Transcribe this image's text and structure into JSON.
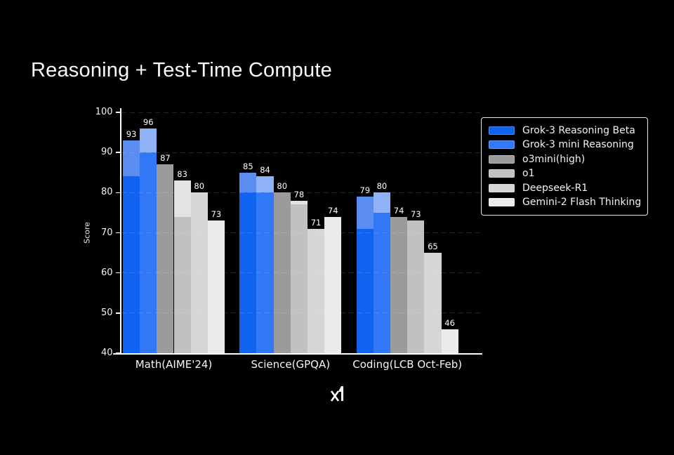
{
  "title": "Reasoning + Test-Time Compute",
  "footer": {
    "logo_name": "xai-logo"
  },
  "chart_data": {
    "type": "bar",
    "title": "Reasoning + Test-Time Compute",
    "xlabel": "",
    "ylabel": "Score",
    "ylim": [
      40,
      100
    ],
    "yticks": [
      40,
      50,
      60,
      70,
      80,
      90,
      100
    ],
    "grid": "horizontal dashed, drawn over bars, low opacity",
    "legend_position": "upper right",
    "background_color": "#000000",
    "axis_color": "#ffffff",
    "categories": [
      "Math(AIME'24)",
      "Science(GPQA)",
      "Coding(LCB Oct-Feb)"
    ],
    "series": [
      {
        "name": "Grok-3 Reasoning Beta",
        "color": "#1063ef",
        "cap_color": "#5b8cf0",
        "values": [
          93,
          85,
          79
        ],
        "solid_to": [
          84,
          80,
          71
        ],
        "note": "lighter cap segment from solid_to up to value"
      },
      {
        "name": "Grok-3 mini Reasoning",
        "color": "#3277f6",
        "cap_color": "#8fb2f7",
        "values": [
          96,
          84,
          80
        ],
        "solid_to": [
          90,
          80,
          75
        ]
      },
      {
        "name": "o3mini(high)",
        "color": "#9b9b9b",
        "cap_color": null,
        "values": [
          87,
          80,
          74
        ],
        "solid_to": [
          87,
          80,
          74
        ]
      },
      {
        "name": "o1",
        "color": "#c1c1c1",
        "cap_color": "#e3e3e3",
        "values": [
          83,
          78,
          73
        ],
        "solid_to": [
          74,
          77,
          73
        ]
      },
      {
        "name": "Deepseek-R1",
        "color": "#d6d6d6",
        "cap_color": null,
        "values": [
          80,
          71,
          65
        ],
        "solid_to": [
          80,
          71,
          65
        ]
      },
      {
        "name": "Gemini-2 Flash Thinking",
        "color": "#ebebeb",
        "cap_color": null,
        "values": [
          73,
          74,
          46
        ],
        "solid_to": [
          73,
          74,
          46
        ]
      }
    ]
  }
}
